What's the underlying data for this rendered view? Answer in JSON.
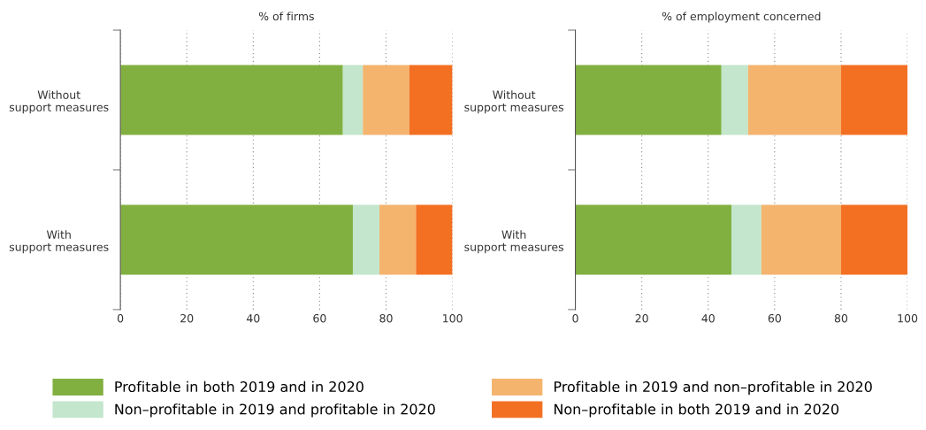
{
  "chart_data": [
    {
      "type": "bar",
      "orientation": "horizontal",
      "stacked": true,
      "title": "% of firms",
      "categories": [
        "Without\nsupport measures",
        "With\nsupport measures"
      ],
      "series": [
        {
          "name": "Profitable in both 2019 and in 2020",
          "color": "#82b040",
          "values": [
            67,
            70
          ]
        },
        {
          "name": "Non–profitable in 2019 and profitable in 2020",
          "color": "#c3e6cc",
          "values": [
            6,
            8
          ]
        },
        {
          "name": "Profitable in 2019 and non–profitable in 2020",
          "color": "#f4b46e",
          "values": [
            14,
            11
          ]
        },
        {
          "name": "Non–profitable in both 2019 and in 2020",
          "color": "#f37023",
          "values": [
            13,
            11
          ]
        }
      ],
      "xlim": [
        0,
        100
      ],
      "xticks": [
        0,
        20,
        40,
        60,
        80,
        100
      ],
      "grid": "x",
      "legend": "bottom"
    },
    {
      "type": "bar",
      "orientation": "horizontal",
      "stacked": true,
      "title": "% of employment concerned",
      "categories": [
        "Without\nsupport measures",
        "With\nsupport measures"
      ],
      "series": [
        {
          "color": "#82b040",
          "values": [
            44,
            47
          ]
        },
        {
          "color": "#c3e6cc",
          "values": [
            8,
            9
          ]
        },
        {
          "color": "#f4b46e",
          "values": [
            28,
            24
          ]
        },
        {
          "color": "#f37023",
          "values": [
            20,
            20
          ]
        }
      ],
      "xlim": [
        0,
        100
      ],
      "xticks": [
        0,
        20,
        40,
        60,
        80,
        100
      ],
      "grid": "x"
    }
  ]
}
